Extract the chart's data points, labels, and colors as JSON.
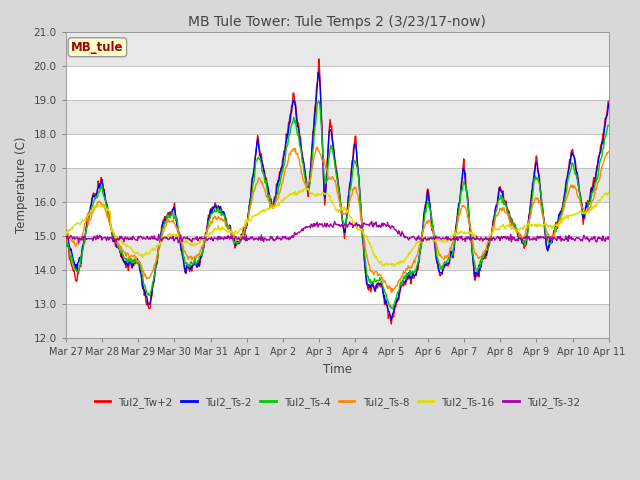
{
  "title": "MB Tule Tower: Tule Temps 2 (3/23/17-now)",
  "xlabel": "Time",
  "ylabel": "Temperature (C)",
  "ylim": [
    12.0,
    21.0
  ],
  "yticks": [
    12.0,
    13.0,
    14.0,
    15.0,
    16.0,
    17.0,
    18.0,
    19.0,
    20.0,
    21.0
  ],
  "legend_label": "MB_tule",
  "legend_label_color": "#aa0000",
  "series_colors": {
    "Tul2_Tw+2": "#ff0000",
    "Tul2_Ts-2": "#0000ff",
    "Tul2_Ts-4": "#00cc00",
    "Tul2_Ts-8": "#ff8800",
    "Tul2_Ts-16": "#dddd00",
    "Tul2_Ts-32": "#aa00aa"
  },
  "x_tick_labels": [
    "Mar 27",
    "Mar 28",
    "Mar 29",
    "Mar 30",
    "Mar 31",
    "Apr 1",
    "Apr 2",
    "Apr 3",
    "Apr 4",
    "Apr 5",
    "Apr 6",
    "Apr 7",
    "Apr 8",
    "Apr 9",
    "Apr 10",
    "Apr 11"
  ],
  "background_color": "#d8d8d8",
  "plot_bg_color": "#ffffff",
  "grid_color": "#cccccc",
  "band_color": "#e8e8e8"
}
